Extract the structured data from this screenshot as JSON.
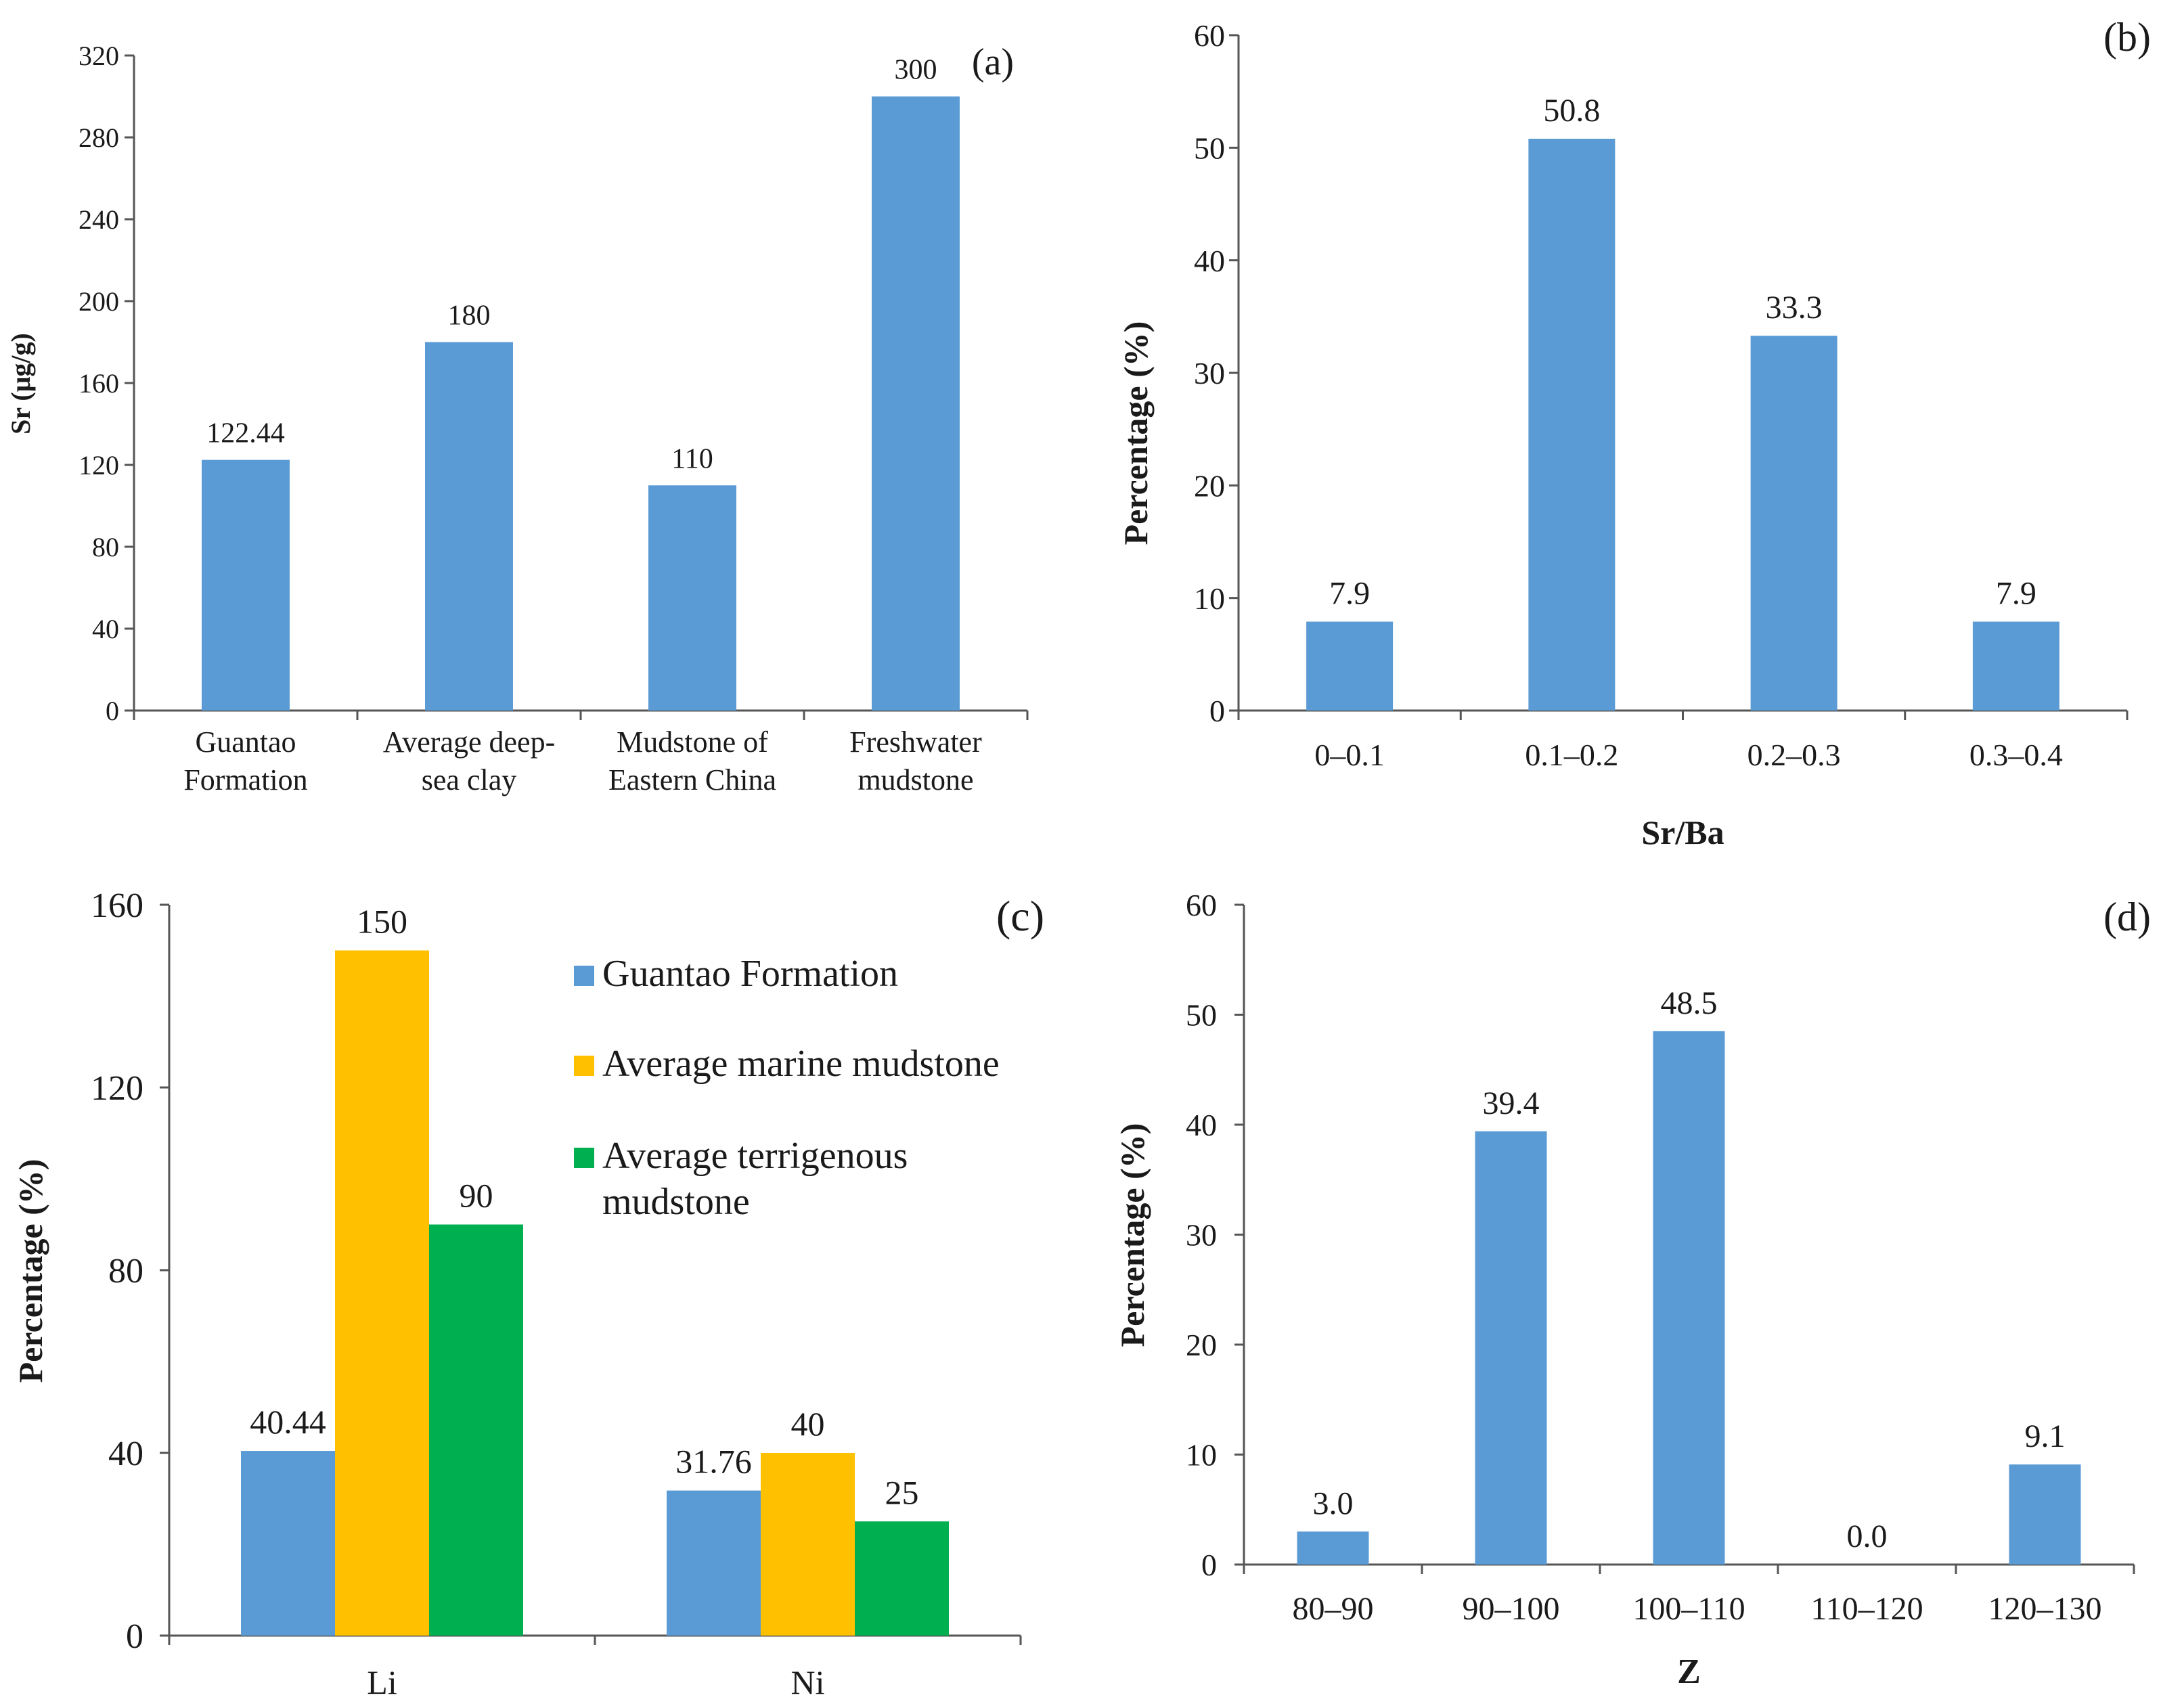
{
  "colors": {
    "guantao": "#5b9bd5",
    "marine": "#ffc000",
    "terrigenous": "#00b050",
    "axis": "#555555",
    "text": "#1a1a1a"
  },
  "chart_data": [
    {
      "panel": "(a)",
      "type": "bar",
      "ylabel": "Sr (μg/g)",
      "xlabel": "",
      "ylim": [
        0,
        320
      ],
      "yticks": [
        "0",
        "40",
        "80",
        "120",
        "160",
        "200",
        "240",
        "280",
        "320"
      ],
      "categories": [
        [
          "Guantao",
          "Formation"
        ],
        [
          "Average deep-",
          "sea clay"
        ],
        [
          "Mudstone of",
          "Eastern China"
        ],
        [
          "Freshwater",
          "mudstone"
        ]
      ],
      "values": [
        122.44,
        180,
        110,
        300
      ],
      "value_labels": [
        "122.44",
        "180",
        "110",
        "300"
      ]
    },
    {
      "panel": "(b)",
      "type": "bar",
      "ylabel": "Percentage (%)",
      "xlabel": "Sr/Ba",
      "ylim": [
        0,
        60
      ],
      "yticks": [
        "0",
        "10",
        "20",
        "30",
        "40",
        "50",
        "60"
      ],
      "categories": [
        "0–0.1",
        "0.1–0.2",
        "0.2–0.3",
        "0.3–0.4"
      ],
      "values": [
        7.9,
        50.8,
        33.3,
        7.9
      ],
      "value_labels": [
        "7.9",
        "50.8",
        "33.3",
        "7.9"
      ]
    },
    {
      "panel": "(c)",
      "type": "bar",
      "ylabel": "Percentage (%)",
      "xlabel": "",
      "ylim": [
        0,
        160
      ],
      "yticks": [
        "0",
        "40",
        "80",
        "120",
        "160"
      ],
      "categories": [
        "Li",
        "Ni"
      ],
      "series": [
        {
          "name": "Guantao Formation",
          "values": [
            40.44,
            31.76
          ],
          "value_labels": [
            "40.44",
            "31.76"
          ]
        },
        {
          "name": "Average marine mudstone",
          "values": [
            150,
            40
          ],
          "value_labels": [
            "150",
            "40"
          ]
        },
        {
          "name": "Average terrigenous mudstone",
          "values": [
            90,
            25
          ],
          "value_labels": [
            "90",
            "25"
          ]
        }
      ],
      "legend": {
        "position": "top-right",
        "entries": [
          [
            "Guantao Formation"
          ],
          [
            "Average marine mudstone"
          ],
          [
            "Average terrigenous",
            "mudstone"
          ]
        ]
      }
    },
    {
      "panel": "(d)",
      "type": "bar",
      "ylabel": "Percentage  (%)",
      "xlabel": "Z",
      "ylim": [
        0,
        60
      ],
      "yticks": [
        "0",
        "10",
        "20",
        "30",
        "40",
        "50",
        "60"
      ],
      "categories": [
        "80–90",
        "90–100",
        "100–110",
        "110–120",
        "120–130"
      ],
      "values": [
        3.0,
        39.4,
        48.5,
        0.0,
        9.1
      ],
      "value_labels": [
        "3.0",
        "39.4",
        "48.5",
        "0.0",
        "9.1"
      ]
    }
  ]
}
